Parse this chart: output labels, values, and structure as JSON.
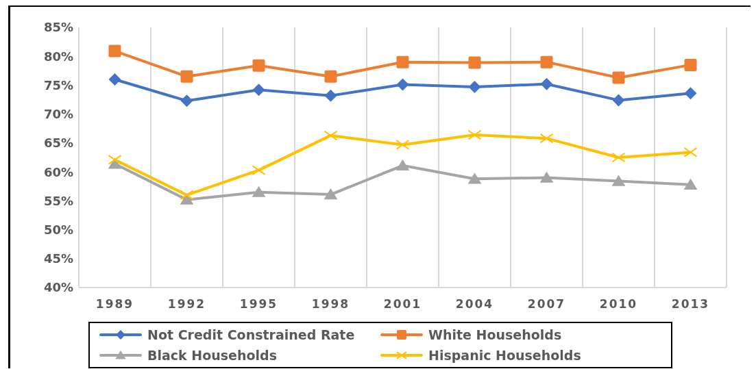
{
  "chart_data": {
    "type": "line",
    "categories": [
      "1989",
      "1992",
      "1995",
      "1998",
      "2001",
      "2004",
      "2007",
      "2010",
      "2013"
    ],
    "series": [
      {
        "name": "Not Credit Constrained Rate",
        "color": "#4472c4",
        "marker": "diamond",
        "values": [
          76.0,
          72.3,
          74.2,
          73.2,
          75.1,
          74.7,
          75.2,
          72.4,
          73.6
        ]
      },
      {
        "name": "White Households",
        "color": "#ed7d31",
        "marker": "square",
        "values": [
          80.9,
          76.5,
          78.4,
          76.5,
          79.0,
          78.9,
          79.0,
          76.3,
          78.5
        ]
      },
      {
        "name": "Black Households",
        "color": "#a5a5a5",
        "marker": "triangle",
        "values": [
          61.4,
          55.2,
          56.5,
          56.1,
          61.1,
          58.8,
          59.0,
          58.4,
          57.8
        ]
      },
      {
        "name": "Hispanic Households",
        "color": "#ffc000",
        "marker": "cross",
        "values": [
          62.1,
          56.0,
          60.3,
          66.3,
          64.7,
          66.4,
          65.8,
          62.5,
          63.4
        ]
      }
    ],
    "ylim": [
      40,
      85
    ],
    "yticks": [
      {
        "value": 40,
        "label": "40%"
      },
      {
        "value": 45,
        "label": "45%"
      },
      {
        "value": 50,
        "label": "50%"
      },
      {
        "value": 55,
        "label": "55%"
      },
      {
        "value": 60,
        "label": "60%"
      },
      {
        "value": 65,
        "label": "65%"
      },
      {
        "value": 70,
        "label": "70%"
      },
      {
        "value": 75,
        "label": "75%"
      },
      {
        "value": 80,
        "label": "80%"
      },
      {
        "value": 85,
        "label": "85%"
      }
    ],
    "grid": "x",
    "legend": "bottom",
    "line_style": "solid"
  }
}
